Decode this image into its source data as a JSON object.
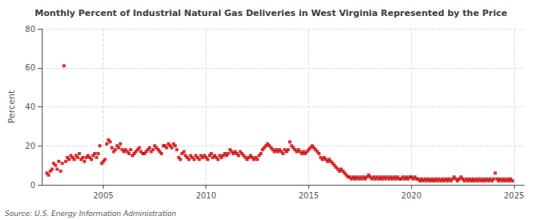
{
  "chart_data": {
    "type": "scatter",
    "title": "Monthly Percent of Industrial Natural Gas Deliveries in West Virginia Represented by the Price",
    "ylabel": "Percent",
    "annotations": [
      "Source: U.S. Energy Information Administration"
    ],
    "color": "#cc0000",
    "marker": "square",
    "grid": true,
    "xlim": [
      2002.0,
      2025.5
    ],
    "xticks": [
      2005,
      2010,
      2015,
      2020,
      2025
    ],
    "ylim": [
      0,
      80
    ],
    "yticks": [
      0,
      20,
      40,
      60,
      80
    ],
    "x": [
      2002.25,
      2002.33,
      2002.42,
      2002.5,
      2002.58,
      2002.67,
      2002.75,
      2002.83,
      2002.92,
      2003.0,
      2003.08,
      2003.17,
      2003.25,
      2003.33,
      2003.42,
      2003.5,
      2003.58,
      2003.67,
      2003.75,
      2003.83,
      2003.92,
      2004.0,
      2004.08,
      2004.17,
      2004.25,
      2004.33,
      2004.42,
      2004.5,
      2004.58,
      2004.67,
      2004.75,
      2004.83,
      2004.92,
      2005.0,
      2005.08,
      2005.17,
      2005.25,
      2005.33,
      2005.42,
      2005.5,
      2005.58,
      2005.67,
      2005.75,
      2005.83,
      2005.92,
      2006.0,
      2006.08,
      2006.17,
      2006.25,
      2006.33,
      2006.42,
      2006.5,
      2006.58,
      2006.67,
      2006.75,
      2006.83,
      2006.92,
      2007.0,
      2007.08,
      2007.17,
      2007.25,
      2007.33,
      2007.42,
      2007.5,
      2007.58,
      2007.67,
      2007.75,
      2007.83,
      2007.92,
      2008.0,
      2008.08,
      2008.17,
      2008.25,
      2008.33,
      2008.42,
      2008.5,
      2008.58,
      2008.67,
      2008.75,
      2008.83,
      2008.92,
      2009.0,
      2009.08,
      2009.17,
      2009.25,
      2009.33,
      2009.42,
      2009.5,
      2009.58,
      2009.67,
      2009.75,
      2009.83,
      2009.92,
      2010.0,
      2010.08,
      2010.17,
      2010.25,
      2010.33,
      2010.42,
      2010.5,
      2010.58,
      2010.67,
      2010.75,
      2010.83,
      2010.92,
      2011.0,
      2011.08,
      2011.17,
      2011.25,
      2011.33,
      2011.42,
      2011.5,
      2011.58,
      2011.67,
      2011.75,
      2011.83,
      2011.92,
      2012.0,
      2012.08,
      2012.17,
      2012.25,
      2012.33,
      2012.42,
      2012.5,
      2012.58,
      2012.67,
      2012.75,
      2012.83,
      2012.92,
      2013.0,
      2013.08,
      2013.17,
      2013.25,
      2013.33,
      2013.42,
      2013.5,
      2013.58,
      2013.67,
      2013.75,
      2013.83,
      2013.92,
      2014.0,
      2014.08,
      2014.17,
      2014.25,
      2014.33,
      2014.42,
      2014.5,
      2014.58,
      2014.67,
      2014.75,
      2014.83,
      2014.92,
      2015.0,
      2015.08,
      2015.17,
      2015.25,
      2015.33,
      2015.42,
      2015.5,
      2015.58,
      2015.67,
      2015.75,
      2015.83,
      2015.92,
      2016.0,
      2016.08,
      2016.17,
      2016.25,
      2016.33,
      2016.42,
      2016.5,
      2016.58,
      2016.67,
      2016.75,
      2016.83,
      2016.92,
      2017.0,
      2017.08,
      2017.17,
      2017.25,
      2017.33,
      2017.42,
      2017.5,
      2017.58,
      2017.67,
      2017.75,
      2017.83,
      2017.92,
      2018.0,
      2018.08,
      2018.17,
      2018.25,
      2018.33,
      2018.42,
      2018.5,
      2018.58,
      2018.67,
      2018.75,
      2018.83,
      2018.92,
      2019.0,
      2019.08,
      2019.17,
      2019.25,
      2019.33,
      2019.42,
      2019.5,
      2019.58,
      2019.67,
      2019.75,
      2019.83,
      2019.92,
      2020.0,
      2020.08,
      2020.17,
      2020.25,
      2020.33,
      2020.42,
      2020.5,
      2020.58,
      2020.67,
      2020.75,
      2020.83,
      2020.92,
      2021.0,
      2021.08,
      2021.17,
      2021.25,
      2021.33,
      2021.42,
      2021.5,
      2021.58,
      2021.67,
      2021.75,
      2021.83,
      2021.92,
      2022.0,
      2022.08,
      2022.17,
      2022.25,
      2022.33,
      2022.42,
      2022.5,
      2022.58,
      2022.67,
      2022.75,
      2022.83,
      2022.92,
      2023.0,
      2023.08,
      2023.17,
      2023.25,
      2023.33,
      2023.42,
      2023.5,
      2023.58,
      2023.67,
      2023.75,
      2023.83,
      2023.92,
      2024.0,
      2024.08,
      2024.17,
      2024.25,
      2024.33,
      2024.42,
      2024.5,
      2024.58,
      2024.67,
      2024.75,
      2024.83,
      2024.92
    ],
    "values": [
      6,
      5,
      7,
      8,
      11,
      10,
      8,
      12,
      7,
      11,
      61,
      12,
      14,
      13,
      15,
      14,
      13,
      15,
      14,
      16,
      13,
      14,
      12,
      14,
      15,
      14,
      13,
      15,
      16,
      14,
      16,
      20,
      11,
      12,
      13,
      21,
      23,
      22,
      19,
      17,
      18,
      20,
      19,
      21,
      18,
      17,
      18,
      17,
      16,
      18,
      15,
      16,
      17,
      18,
      19,
      17,
      16,
      16,
      17,
      18,
      19,
      17,
      18,
      20,
      19,
      18,
      17,
      16,
      20,
      20,
      19,
      21,
      20,
      19,
      21,
      20,
      18,
      14,
      13,
      16,
      17,
      15,
      14,
      13,
      15,
      14,
      13,
      15,
      14,
      13,
      15,
      14,
      15,
      14,
      13,
      15,
      16,
      14,
      15,
      14,
      13,
      15,
      14,
      15,
      16,
      15,
      16,
      18,
      17,
      16,
      17,
      16,
      15,
      17,
      16,
      15,
      14,
      13,
      14,
      15,
      14,
      13,
      14,
      13,
      15,
      16,
      18,
      19,
      20,
      21,
      20,
      19,
      18,
      17,
      18,
      17,
      18,
      17,
      16,
      18,
      17,
      18,
      22,
      20,
      19,
      18,
      17,
      18,
      17,
      16,
      17,
      16,
      17,
      18,
      19,
      20,
      19,
      18,
      17,
      16,
      14,
      13,
      14,
      13,
      12,
      13,
      12,
      11,
      10,
      9,
      8,
      7,
      8,
      7,
      6,
      5,
      4,
      4,
      3,
      4,
      3,
      4,
      3,
      4,
      3,
      4,
      3,
      4,
      5,
      4,
      3,
      4,
      3,
      4,
      3,
      4,
      3,
      4,
      3,
      4,
      3,
      4,
      3,
      4,
      3,
      4,
      3,
      3,
      4,
      3,
      4,
      3,
      4,
      4,
      3,
      4,
      3,
      3,
      2,
      3,
      2,
      3,
      2,
      3,
      2,
      3,
      2,
      3,
      2,
      3,
      2,
      3,
      2,
      3,
      2,
      3,
      2,
      3,
      4,
      3,
      2,
      3,
      4,
      3,
      2,
      3,
      2,
      3,
      2,
      3,
      2,
      3,
      2,
      3,
      2,
      3,
      2,
      3,
      2,
      3,
      2,
      3,
      6,
      3,
      2,
      3,
      2,
      3,
      2,
      3,
      2,
      3,
      2
    ]
  }
}
